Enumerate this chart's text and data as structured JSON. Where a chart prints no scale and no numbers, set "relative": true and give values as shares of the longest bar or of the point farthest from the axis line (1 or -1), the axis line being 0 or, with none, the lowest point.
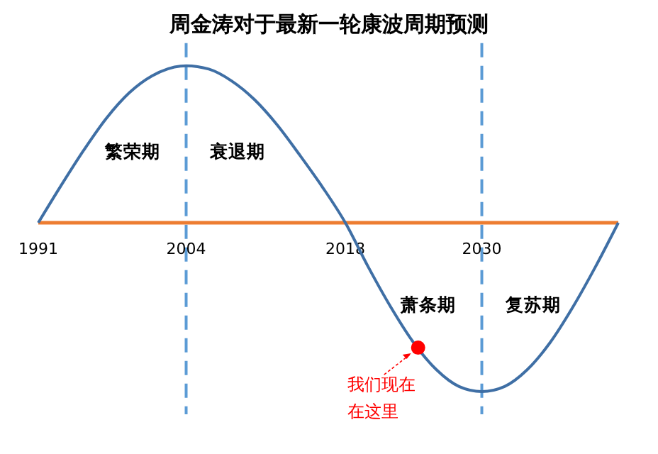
{
  "chart_data": {
    "type": "line",
    "title": "周金涛对于最新一轮康波周期预测",
    "relative": true,
    "x": [
      1991,
      1993,
      1995,
      1997,
      1999,
      2001,
      2004,
      2006,
      2008,
      2010,
      2012,
      2014,
      2016,
      2018,
      2020,
      2022,
      2024,
      2026,
      2028,
      2030,
      2032,
      2034,
      2036,
      2038,
      2040,
      2042
    ],
    "xlim": [
      1991,
      2042
    ],
    "xticks": [
      1991,
      2004,
      2018,
      2030
    ],
    "series": [
      {
        "color": "#3f6fa5",
        "marker": "none",
        "values": [
          0,
          0.22,
          0.43,
          0.62,
          0.77,
          0.87,
          0.93,
          0.91,
          0.84,
          0.73,
          0.58,
          0.4,
          0.21,
          0,
          -0.26,
          -0.5,
          -0.71,
          -0.87,
          -0.97,
          -1,
          -0.97,
          -0.87,
          -0.71,
          -0.5,
          -0.26,
          0
        ]
      },
      {
        "type": "scatter",
        "color": "#ff0000",
        "marker": "circle",
        "x": [
          2024.4
        ],
        "values": [
          -0.74
        ]
      }
    ],
    "ref_lines": [
      {
        "axis": "x",
        "value": 2004,
        "color": "#5b9bd5",
        "line_style": "dashed"
      },
      {
        "axis": "x",
        "value": 2030,
        "color": "#5b9bd5",
        "line_style": "dashed"
      }
    ],
    "annotations": [
      "繁荣期",
      "衰退期",
      "萧条期",
      "复苏期",
      {
        "text": "我们现在在这里",
        "x": 2024.4,
        "y": -0.74
      }
    ]
  }
}
